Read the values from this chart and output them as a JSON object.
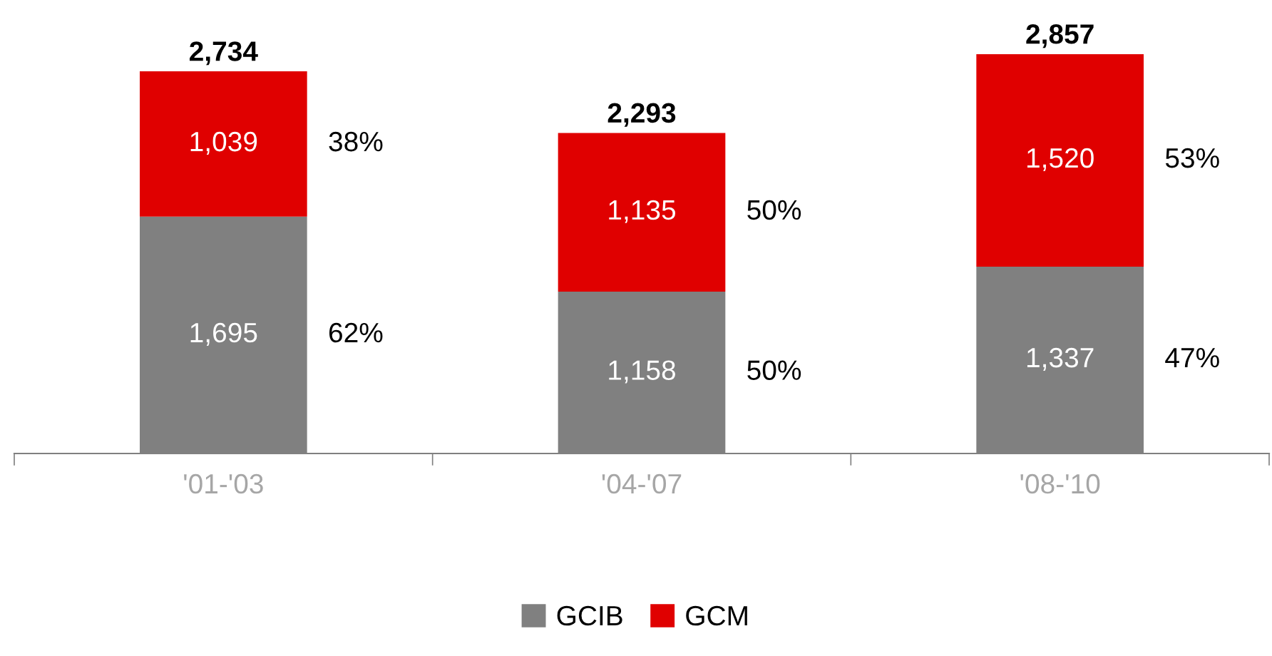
{
  "chart_data": {
    "type": "bar",
    "stacked": true,
    "categories": [
      "'01-'03",
      "'04-'07",
      "'08-'10"
    ],
    "series": [
      {
        "name": "GCIB",
        "color": "#808080",
        "values": [
          1695,
          1158,
          1337
        ],
        "value_labels": [
          "1,695",
          "1,158",
          "1,337"
        ]
      },
      {
        "name": "GCM",
        "color": "#e00000",
        "values": [
          1039,
          1135,
          1520
        ],
        "value_labels": [
          "1,039",
          "1,135",
          "1,520"
        ]
      }
    ],
    "totals": [
      "2,734",
      "2,293",
      "2,857"
    ],
    "legend": "bottom",
    "annotations": [
      "62%",
      "50%",
      "47%",
      "38%",
      "50%",
      "53%"
    ]
  }
}
